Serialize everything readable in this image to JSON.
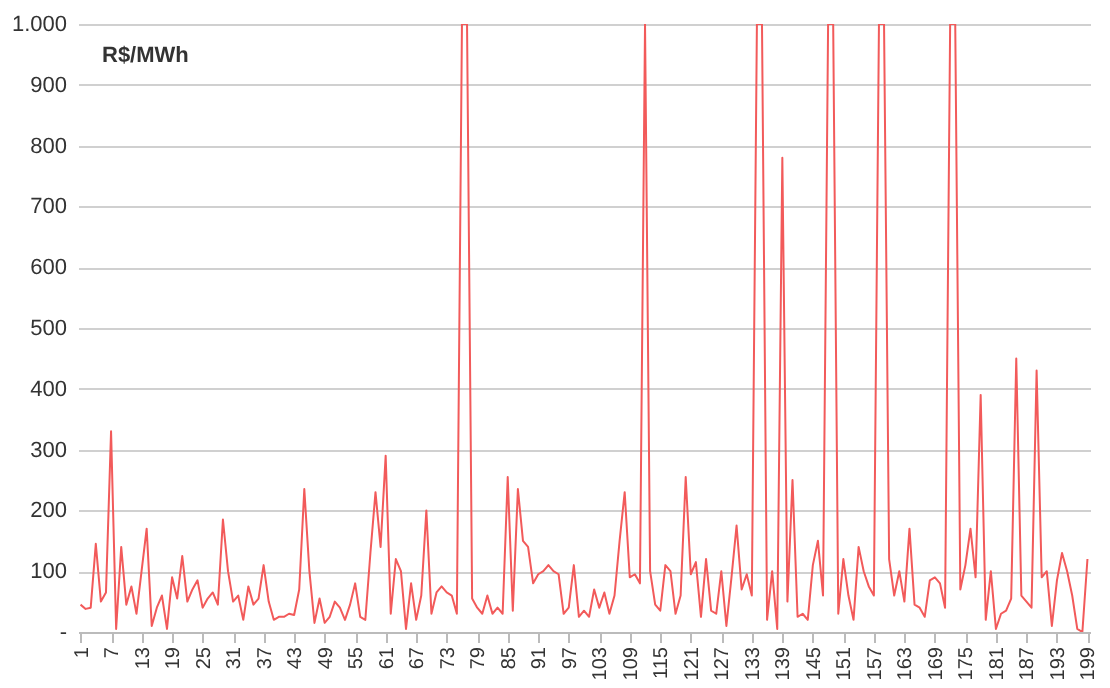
{
  "chart_data": {
    "type": "line",
    "ylabel": "R$/MWh",
    "categories": [
      "1",
      null,
      null,
      null,
      null,
      null,
      "7",
      null,
      null,
      null,
      null,
      null,
      "13",
      null,
      null,
      null,
      null,
      null,
      "19",
      null,
      null,
      null,
      null,
      null,
      "25",
      null,
      null,
      null,
      null,
      null,
      "31",
      null,
      null,
      null,
      null,
      null,
      "37",
      null,
      null,
      null,
      null,
      null,
      "43",
      null,
      null,
      null,
      null,
      null,
      "49",
      null,
      null,
      null,
      null,
      null,
      "55",
      null,
      null,
      null,
      null,
      null,
      "61",
      null,
      null,
      null,
      null,
      null,
      "67",
      null,
      null,
      null,
      null,
      null,
      "73",
      null,
      null,
      null,
      null,
      null,
      "79",
      null,
      null,
      null,
      null,
      null,
      "85",
      null,
      null,
      null,
      null,
      null,
      "91",
      null,
      null,
      null,
      null,
      null,
      "97",
      null,
      null,
      null,
      null,
      null,
      "103",
      null,
      null,
      null,
      null,
      null,
      "109",
      null,
      null,
      null,
      null,
      null,
      "115",
      null,
      null,
      null,
      null,
      null,
      "121",
      null,
      null,
      null,
      null,
      null,
      "127",
      null,
      null,
      null,
      null,
      null,
      "133",
      null,
      null,
      null,
      null,
      null,
      "139",
      null,
      null,
      null,
      null,
      null,
      "145",
      null,
      null,
      null,
      null,
      null,
      "151",
      null,
      null,
      null,
      null,
      null,
      "157",
      null,
      null,
      null,
      null,
      null,
      "163",
      null,
      null,
      null,
      null,
      null,
      "169",
      null,
      null,
      null,
      null,
      null,
      "175",
      null,
      null,
      null,
      null,
      null,
      "181",
      null,
      null,
      null,
      null,
      null,
      "187",
      null,
      null,
      null,
      null,
      null,
      "193",
      null,
      null,
      null,
      null,
      null,
      "199"
    ],
    "series": [
      {
        "color": "#f25a5a",
        "values": [
          45,
          38,
          40,
          145,
          50,
          65,
          330,
          5,
          140,
          45,
          75,
          30,
          100,
          170,
          10,
          40,
          60,
          5,
          90,
          55,
          125,
          50,
          70,
          85,
          40,
          55,
          65,
          45,
          185,
          100,
          50,
          60,
          20,
          75,
          45,
          55,
          110,
          50,
          20,
          25,
          25,
          30,
          28,
          70,
          235,
          100,
          15,
          55,
          15,
          25,
          50,
          40,
          20,
          45,
          80,
          25,
          20,
          130,
          230,
          140,
          290,
          30,
          120,
          100,
          5,
          80,
          20,
          60,
          200,
          30,
          65,
          75,
          65,
          60,
          30,
          1000,
          1000,
          55,
          40,
          30,
          60,
          30,
          40,
          30,
          255,
          35,
          235,
          150,
          140,
          80,
          95,
          100,
          110,
          100,
          95,
          30,
          40,
          110,
          25,
          35,
          25,
          70,
          40,
          65,
          30,
          60,
          150,
          230,
          90,
          95,
          80,
          1000,
          100,
          45,
          35,
          110,
          100,
          30,
          60,
          255,
          95,
          115,
          25,
          120,
          35,
          30,
          100,
          10,
          90,
          175,
          70,
          95,
          60,
          1000,
          1000,
          20,
          100,
          5,
          780,
          50,
          250,
          25,
          30,
          20,
          110,
          150,
          60,
          1000,
          1000,
          30,
          120,
          60,
          20,
          140,
          100,
          75,
          60,
          1000,
          1000,
          120,
          60,
          100,
          50,
          170,
          45,
          40,
          25,
          85,
          90,
          80,
          40,
          1000,
          1000,
          70,
          110,
          170,
          90,
          390,
          20,
          100,
          5,
          30,
          35,
          55,
          450,
          60,
          50,
          40,
          430,
          90,
          100,
          10,
          85,
          130,
          100,
          60,
          5,
          0,
          120
        ]
      }
    ],
    "ylim": [
      0,
      1000
    ],
    "yticks": [
      {
        "value": 0,
        "label": "-"
      },
      100,
      200,
      300,
      400,
      500,
      600,
      700,
      800,
      900,
      {
        "value": 1000,
        "label": "1.000"
      }
    ],
    "grid": "y",
    "legend": false,
    "marker": "none",
    "line_style": "solid"
  }
}
